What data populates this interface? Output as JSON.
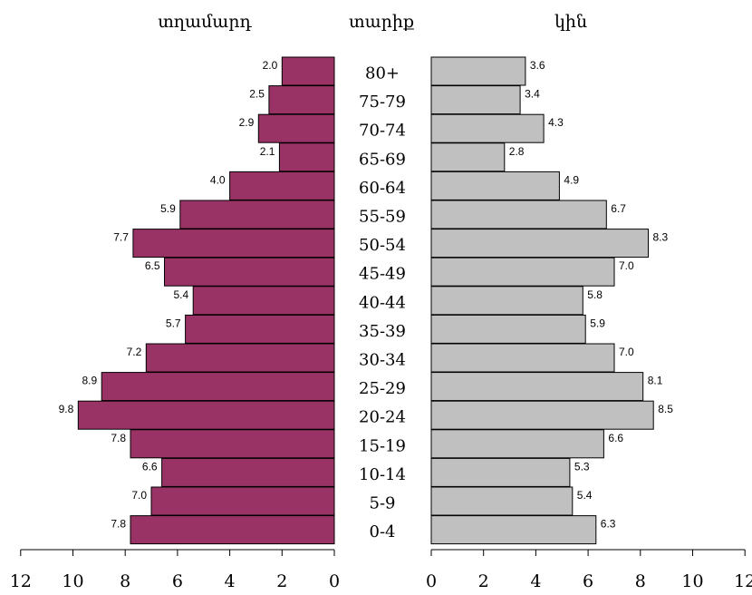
{
  "colors": {
    "male": "#993366",
    "female": "#c0c0c0",
    "stroke": "#000000"
  },
  "chart_data": {
    "type": "bar",
    "headers": {
      "male": "տղամարդ",
      "age": "տարիք",
      "female": "կին"
    },
    "categories": [
      "80+",
      "75-79",
      "70-74",
      "65-69",
      "60-64",
      "55-59",
      "50-54",
      "45-49",
      "40-44",
      "35-39",
      "30-34",
      "25-29",
      "20-24",
      "15-19",
      "10-14",
      "5-9",
      "0-4"
    ],
    "series": [
      {
        "name": "տղամարդ",
        "values": [
          2.0,
          2.5,
          2.9,
          2.1,
          4.0,
          5.9,
          7.7,
          6.5,
          5.4,
          5.7,
          7.2,
          8.9,
          9.8,
          7.8,
          6.6,
          7.0,
          7.8
        ]
      },
      {
        "name": "կին",
        "values": [
          3.6,
          3.4,
          4.3,
          2.8,
          4.9,
          6.7,
          8.3,
          7.0,
          5.8,
          5.9,
          7.0,
          8.1,
          8.5,
          6.6,
          5.3,
          5.4,
          6.3
        ]
      }
    ],
    "value_labels": {
      "male": [
        "2.0",
        "2.5",
        "2.9",
        "2.1",
        "4.0",
        "5.9",
        "7.7",
        "6.5",
        "5.4",
        "5.7",
        "7.2",
        "8.9",
        "9.8",
        "7.8",
        "6.6",
        "7.0",
        "7.8"
      ],
      "female": [
        "3.6",
        "3.4",
        "4.3",
        "2.8",
        "4.9",
        "6.7",
        "8.3",
        "7.0",
        "5.8",
        "5.9",
        "7.0",
        "8.1",
        "8.5",
        "6.6",
        "5.3",
        "5.4",
        "6.3"
      ]
    },
    "xlim": [
      0,
      12
    ],
    "ticks": [
      "0",
      "2",
      "4",
      "6",
      "8",
      "10",
      "12"
    ],
    "grid": false
  }
}
